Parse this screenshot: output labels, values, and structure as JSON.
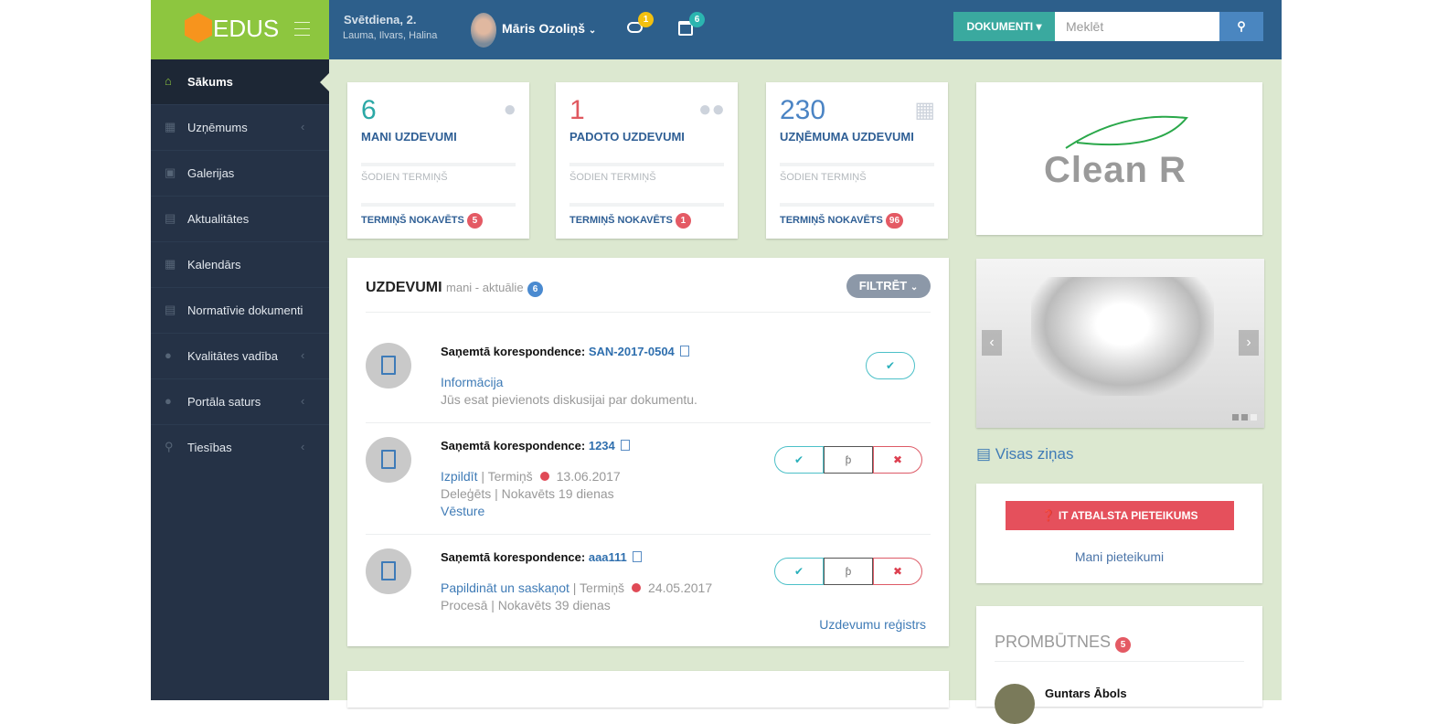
{
  "app": {
    "logo": "EDUS"
  },
  "header": {
    "date": "Svētdiena, 2.",
    "namedays": "Lauma, Ilvars, Halina",
    "user": "Māris Ozoliņš",
    "messages_count": "1",
    "calendar_count": "6",
    "documents_label": "DOKUMENTI",
    "search_placeholder": "Meklēt"
  },
  "sidebar": {
    "items": [
      {
        "label": "Sākums",
        "icon": "home-icon",
        "active": true
      },
      {
        "label": "Uzņēmums",
        "icon": "building-icon",
        "submenu": true
      },
      {
        "label": "Galerijas",
        "icon": "image-icon"
      },
      {
        "label": "Aktualitātes",
        "icon": "newspaper-icon"
      },
      {
        "label": "Kalendārs",
        "icon": "calendar-icon"
      },
      {
        "label": "Normatīvie dokumenti",
        "icon": "document-icon"
      },
      {
        "label": "Kvalitātes vadība",
        "icon": "exclamation-icon",
        "submenu": true
      },
      {
        "label": "Portāla saturs",
        "icon": "globe-icon",
        "submenu": true
      },
      {
        "label": "Tiesības",
        "icon": "key-icon",
        "submenu": true
      }
    ]
  },
  "stats": [
    {
      "value": "6",
      "title": "MANI UZDEVUMI",
      "today": "ŠODIEN TERMIŅŠ",
      "late": "TERMIŅŠ NOKAVĒTS",
      "late_count": "5",
      "color": "#2ba8a6",
      "icon": "user-icon"
    },
    {
      "value": "1",
      "title": "PADOTO UZDEVUMI",
      "today": "ŠODIEN TERMIŅŠ",
      "late": "TERMIŅŠ NOKAVĒTS",
      "late_count": "1",
      "color": "#e0585f",
      "icon": "users-icon"
    },
    {
      "value": "230",
      "title": "UZŅĒMUMA UZDEVUMI",
      "today": "ŠODIEN TERMIŅŠ",
      "late": "TERMIŅŠ NOKAVĒTS",
      "late_count": "96",
      "color": "#4b84c4",
      "icon": "building-icon"
    }
  ],
  "tasks": {
    "title": "UZDEVUMI",
    "subtitle": "mani - aktuālie",
    "count": "6",
    "filter_label": "FILTRĒT",
    "register_link": "Uzdevumu reģistrs",
    "items": [
      {
        "label": "Saņemtā korespondence:",
        "ref": "SAN-2017-0504",
        "action": "Informācija",
        "line2": "Jūs esat pievienots diskusijai par dokumentu."
      },
      {
        "label": "Saņemtā korespondence:",
        "ref": "1234",
        "action": "Izpildīt",
        "term": "| Termiņš",
        "date": "13.06.2017",
        "line2": "Deleģēts | Nokavēts 19 dienas",
        "history": "Vēsture"
      },
      {
        "label": "Saņemtā korespondence:",
        "ref": "aaa111",
        "action": "Papildināt un saskaņot",
        "term": "| Termiņš",
        "date": "24.05.2017",
        "line2": "Procesā | Nokavēts 39 dienas"
      }
    ]
  },
  "right": {
    "company_logo": "Clean R",
    "news_link": "Visas ziņas",
    "it_button": "IT ATBALSTA PIETEIKUMS",
    "my_requests": "Mani pieteikumi",
    "absences_title": "PROMBŪTNES",
    "absences_count": "5",
    "absent_person": "Guntars Ābols"
  }
}
